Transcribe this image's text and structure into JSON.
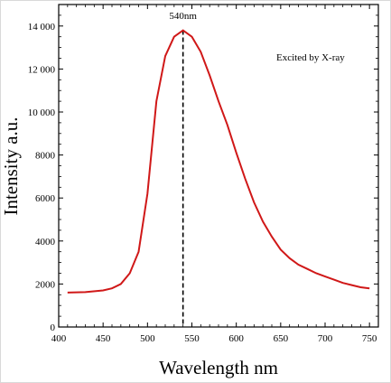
{
  "chart_data": {
    "type": "line",
    "xlabel": "Wavelength  nm",
    "ylabel": "Intensity a.u.",
    "xlim": [
      400,
      760
    ],
    "ylim": [
      0,
      15000
    ],
    "x_ticks": [
      400,
      450,
      500,
      550,
      600,
      650,
      700,
      750
    ],
    "y_ticks": [
      0,
      2000,
      4000,
      6000,
      8000,
      10000,
      12000,
      14000
    ],
    "x_tick_labels": [
      "400",
      "450",
      "500",
      "550",
      "600",
      "650",
      "700",
      "750"
    ],
    "y_tick_labels": [
      "0",
      "2000",
      "4000",
      "6000",
      "8000",
      "10 000",
      "12 000",
      "14 000"
    ],
    "grid": false,
    "series": [
      {
        "color": "#d01818",
        "x": [
          410,
          430,
          450,
          460,
          470,
          480,
          490,
          500,
          510,
          520,
          530,
          540,
          550,
          560,
          570,
          580,
          590,
          600,
          610,
          620,
          630,
          640,
          650,
          660,
          670,
          680,
          690,
          700,
          710,
          720,
          730,
          740,
          750
        ],
        "y": [
          1600,
          1620,
          1700,
          1800,
          2000,
          2500,
          3500,
          6200,
          10500,
          12600,
          13500,
          13800,
          13500,
          12800,
          11700,
          10500,
          9400,
          8100,
          6900,
          5800,
          4900,
          4200,
          3600,
          3200,
          2900,
          2700,
          2500,
          2350,
          2200,
          2050,
          1950,
          1850,
          1800
        ]
      }
    ],
    "annotations": {
      "peak_label": "540nm",
      "peak_x": 540,
      "legend_text": "Excited by X-ray"
    }
  }
}
